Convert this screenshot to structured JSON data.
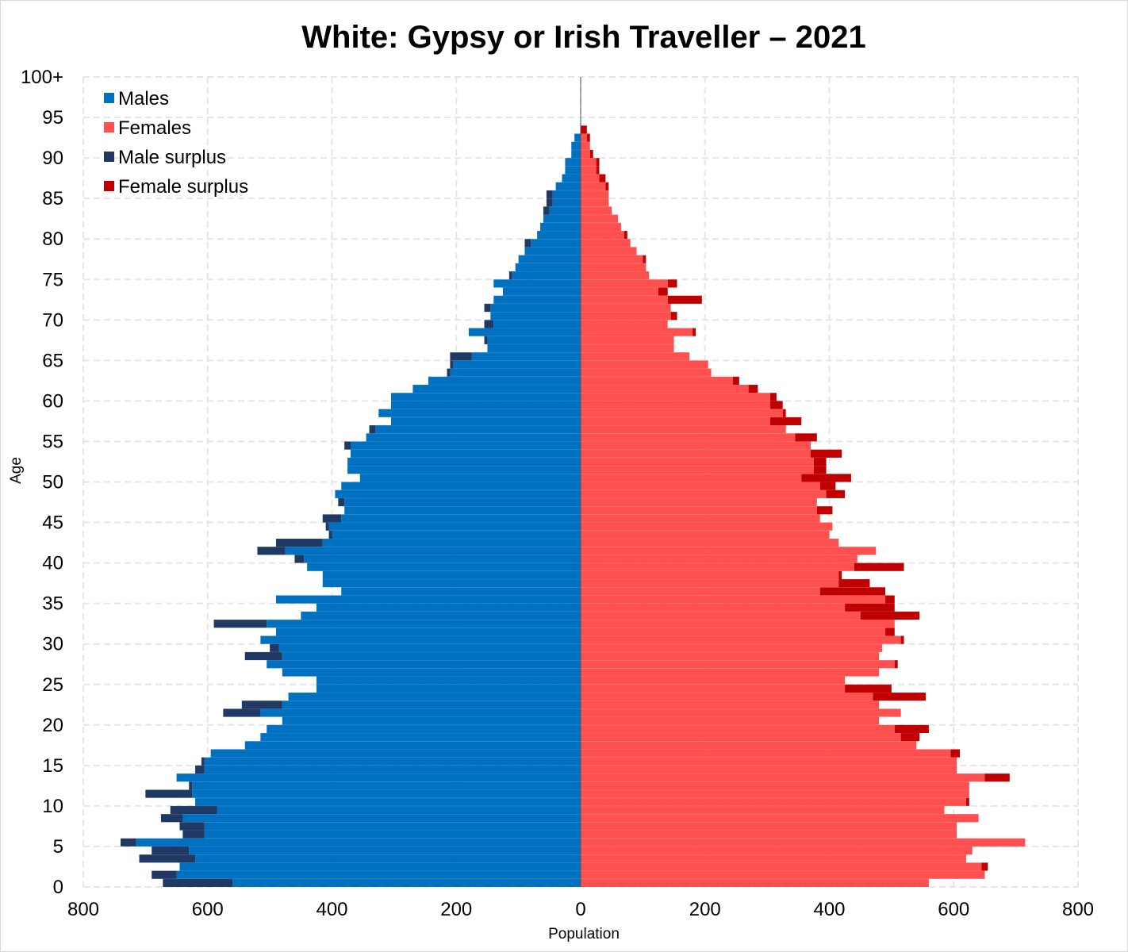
{
  "chart_data": {
    "type": "bar",
    "orientation": "horizontal",
    "title": "White: Gypsy or Irish Traveller – 2021",
    "xlabel": "Population",
    "ylabel": "Age",
    "xlim": [
      -800,
      800
    ],
    "xticks": [
      -800,
      -600,
      -400,
      -200,
      0,
      200,
      400,
      600,
      800
    ],
    "xtick_labels": [
      "800",
      "600",
      "400",
      "200",
      "0",
      "200",
      "400",
      "600",
      "800"
    ],
    "yticks": [
      0,
      5,
      10,
      15,
      20,
      25,
      30,
      35,
      40,
      45,
      50,
      55,
      60,
      65,
      70,
      75,
      80,
      85,
      90,
      95,
      100
    ],
    "ytick_labels": [
      "0",
      "5",
      "10",
      "15",
      "20",
      "25",
      "30",
      "35",
      "40",
      "45",
      "50",
      "55",
      "60",
      "65",
      "70",
      "75",
      "80",
      "85",
      "90",
      "95",
      "100+"
    ],
    "grid": true,
    "legend_position": "top-left",
    "colors": {
      "males": "#0070c0",
      "females": "#ff5050",
      "male_surplus": "#1f3864",
      "female_surplus": "#c00000",
      "grid": "#e6e6e6"
    },
    "series": [
      {
        "name": "Males",
        "ages": [
          0,
          1,
          2,
          3,
          4,
          5,
          6,
          7,
          8,
          9,
          10,
          11,
          12,
          13,
          14,
          15,
          16,
          17,
          18,
          19,
          20,
          21,
          22,
          23,
          24,
          25,
          26,
          27,
          28,
          29,
          30,
          31,
          32,
          33,
          34,
          35,
          36,
          37,
          38,
          39,
          40,
          41,
          42,
          43,
          44,
          45,
          46,
          47,
          48,
          49,
          50,
          51,
          52,
          53,
          54,
          55,
          56,
          57,
          58,
          59,
          60,
          61,
          62,
          63,
          64,
          65,
          66,
          67,
          68,
          69,
          70,
          71,
          72,
          73,
          74,
          75,
          76,
          77,
          78,
          79,
          80,
          81,
          82,
          83,
          84,
          85,
          86,
          87,
          88,
          89,
          90,
          91,
          92,
          93,
          94,
          95,
          96,
          97,
          98,
          99,
          100
        ],
        "values": [
          672,
          690,
          645,
          710,
          690,
          740,
          640,
          645,
          675,
          660,
          620,
          700,
          630,
          650,
          620,
          610,
          595,
          540,
          515,
          505,
          480,
          575,
          545,
          470,
          425,
          425,
          480,
          505,
          540,
          500,
          515,
          490,
          590,
          450,
          425,
          490,
          385,
          415,
          415,
          440,
          460,
          520,
          490,
          405,
          410,
          415,
          380,
          390,
          395,
          385,
          355,
          375,
          375,
          370,
          380,
          345,
          340,
          305,
          325,
          305,
          305,
          270,
          245,
          215,
          210,
          210,
          150,
          155,
          180,
          155,
          145,
          155,
          140,
          125,
          140,
          115,
          105,
          100,
          90,
          90,
          70,
          65,
          60,
          60,
          55,
          55,
          40,
          30,
          25,
          25,
          15,
          15,
          10,
          0,
          0,
          0,
          0,
          0,
          0,
          0,
          0
        ]
      },
      {
        "name": "Females",
        "ages": [
          0,
          1,
          2,
          3,
          4,
          5,
          6,
          7,
          8,
          9,
          10,
          11,
          12,
          13,
          14,
          15,
          16,
          17,
          18,
          19,
          20,
          21,
          22,
          23,
          24,
          25,
          26,
          27,
          28,
          29,
          30,
          31,
          32,
          33,
          34,
          35,
          36,
          37,
          38,
          39,
          40,
          41,
          42,
          43,
          44,
          45,
          46,
          47,
          48,
          49,
          50,
          51,
          52,
          53,
          54,
          55,
          56,
          57,
          58,
          59,
          60,
          61,
          62,
          63,
          64,
          65,
          66,
          67,
          68,
          69,
          70,
          71,
          72,
          73,
          74,
          75,
          76,
          77,
          78,
          79,
          80,
          81,
          82,
          83,
          84,
          85,
          86,
          87,
          88,
          89,
          90,
          91,
          92,
          93,
          94,
          95,
          96,
          97,
          98,
          99,
          100
        ],
        "values": [
          560,
          650,
          655,
          620,
          630,
          715,
          605,
          605,
          640,
          585,
          625,
          625,
          625,
          690,
          605,
          605,
          610,
          540,
          545,
          560,
          480,
          515,
          480,
          555,
          500,
          425,
          480,
          510,
          480,
          485,
          520,
          505,
          505,
          545,
          505,
          505,
          490,
          465,
          420,
          520,
          445,
          475,
          415,
          400,
          405,
          385,
          405,
          380,
          425,
          410,
          435,
          395,
          395,
          420,
          370,
          380,
          330,
          355,
          330,
          325,
          315,
          285,
          255,
          210,
          205,
          175,
          150,
          150,
          185,
          140,
          155,
          145,
          195,
          140,
          155,
          110,
          105,
          105,
          90,
          80,
          75,
          65,
          60,
          50,
          45,
          45,
          45,
          40,
          30,
          30,
          20,
          15,
          15,
          10,
          0,
          0,
          0,
          0,
          0,
          0,
          0
        ]
      }
    ]
  },
  "legend": {
    "items": [
      {
        "label": "Males",
        "color": "#0070c0"
      },
      {
        "label": "Females",
        "color": "#ff5050"
      },
      {
        "label": "Male surplus",
        "color": "#1f3864"
      },
      {
        "label": "Female surplus",
        "color": "#c00000"
      }
    ]
  }
}
